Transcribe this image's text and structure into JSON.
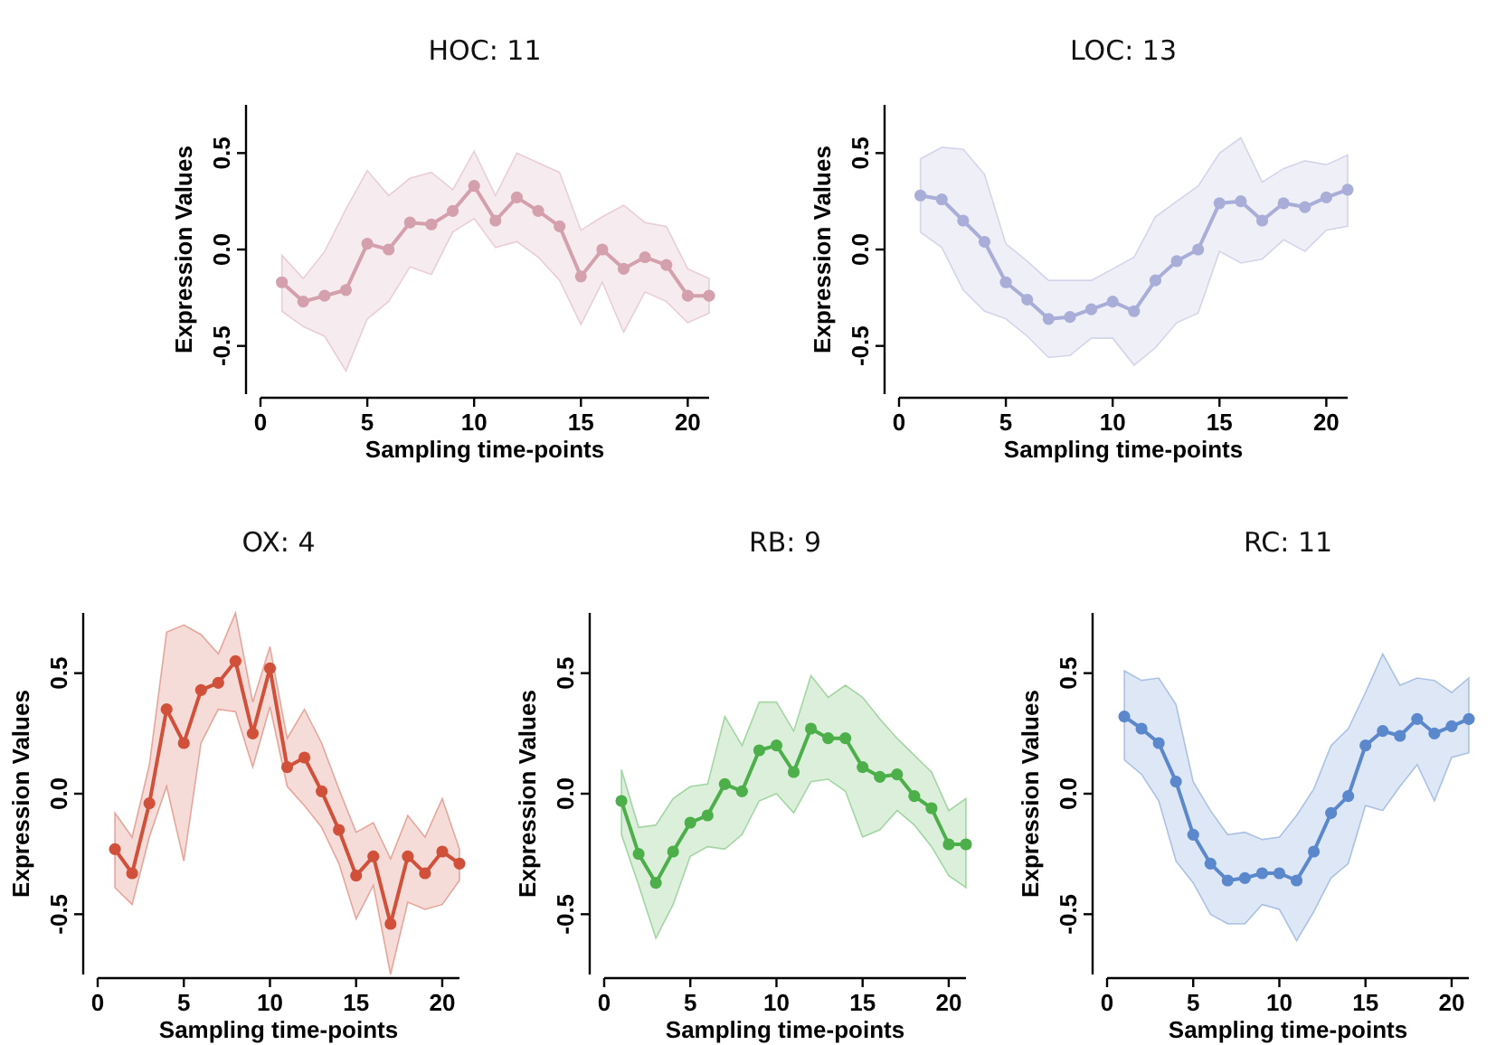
{
  "chart_data": [
    {
      "type": "line",
      "title": "HOC: 11",
      "xlabel": "Sampling time-points",
      "ylabel": "Expression Values",
      "x": [
        1,
        2,
        3,
        4,
        5,
        6,
        7,
        8,
        9,
        10,
        11,
        12,
        13,
        14,
        15,
        16,
        17,
        18,
        19,
        20,
        21
      ],
      "xlim": [
        0,
        21
      ],
      "xticks": [
        0,
        5,
        10,
        15,
        20
      ],
      "ylim": [
        -0.75,
        0.75
      ],
      "yticks": [
        {
          "value": -0.5,
          "label": "-0.5"
        },
        {
          "value": 0,
          "label": "0.0"
        },
        {
          "value": 0.5,
          "label": "0.5"
        }
      ],
      "marker": "circle",
      "series": [
        {
          "color": "#d4a0ae",
          "values": [
            -0.17,
            -0.27,
            -0.24,
            -0.21,
            0.03,
            0.0,
            0.14,
            0.13,
            0.2,
            0.33,
            0.15,
            0.27,
            0.2,
            0.12,
            -0.14,
            0.0,
            -0.1,
            -0.04,
            -0.08,
            -0.24,
            -0.24
          ],
          "lower": [
            -0.32,
            -0.4,
            -0.45,
            -0.63,
            -0.36,
            -0.27,
            -0.09,
            -0.13,
            0.09,
            0.16,
            0.01,
            0.04,
            -0.04,
            -0.16,
            -0.39,
            -0.17,
            -0.43,
            -0.22,
            -0.27,
            -0.38,
            -0.33
          ],
          "upper": [
            -0.03,
            -0.15,
            -0.01,
            0.21,
            0.41,
            0.28,
            0.37,
            0.4,
            0.31,
            0.51,
            0.28,
            0.5,
            0.45,
            0.4,
            0.1,
            0.17,
            0.23,
            0.14,
            0.12,
            -0.1,
            -0.15
          ]
        }
      ]
    },
    {
      "type": "line",
      "title": "LOC: 13",
      "xlabel": "Sampling time-points",
      "ylabel": "Expression Values",
      "x": [
        1,
        2,
        3,
        4,
        5,
        6,
        7,
        8,
        9,
        10,
        11,
        12,
        13,
        14,
        15,
        16,
        17,
        18,
        19,
        20,
        21
      ],
      "xlim": [
        0,
        21
      ],
      "xticks": [
        0,
        5,
        10,
        15,
        20
      ],
      "ylim": [
        -0.75,
        0.75
      ],
      "yticks": [
        {
          "value": -0.5,
          "label": "-0.5"
        },
        {
          "value": 0,
          "label": "0.0"
        },
        {
          "value": 0.5,
          "label": "0.5"
        }
      ],
      "marker": "circle",
      "series": [
        {
          "color": "#a9aed8",
          "values": [
            0.28,
            0.26,
            0.15,
            0.04,
            -0.17,
            -0.26,
            -0.36,
            -0.35,
            -0.31,
            -0.27,
            -0.32,
            -0.16,
            -0.06,
            0.0,
            0.24,
            0.25,
            0.15,
            0.24,
            0.22,
            0.27,
            0.31
          ],
          "lower": [
            0.09,
            0.01,
            -0.21,
            -0.32,
            -0.36,
            -0.45,
            -0.56,
            -0.55,
            -0.46,
            -0.46,
            -0.6,
            -0.51,
            -0.38,
            -0.33,
            -0.01,
            -0.07,
            -0.05,
            0.05,
            -0.01,
            0.1,
            0.12
          ],
          "upper": [
            0.47,
            0.53,
            0.52,
            0.39,
            0.03,
            -0.06,
            -0.16,
            -0.16,
            -0.16,
            -0.1,
            -0.04,
            0.17,
            0.25,
            0.33,
            0.5,
            0.58,
            0.35,
            0.42,
            0.46,
            0.44,
            0.49
          ]
        }
      ]
    },
    {
      "type": "line",
      "title": "OX: 4",
      "xlabel": "Sampling time-points",
      "ylabel": "Expression Values",
      "x": [
        1,
        2,
        3,
        4,
        5,
        6,
        7,
        8,
        9,
        10,
        11,
        12,
        13,
        14,
        15,
        16,
        17,
        18,
        19,
        20,
        21
      ],
      "xlim": [
        0,
        21
      ],
      "xticks": [
        0,
        5,
        10,
        15,
        20
      ],
      "ylim": [
        -0.75,
        0.75
      ],
      "yticks": [
        {
          "value": -0.5,
          "label": "-0.5"
        },
        {
          "value": 0,
          "label": "0.0"
        },
        {
          "value": 0.5,
          "label": "0.5"
        }
      ],
      "marker": "circle",
      "series": [
        {
          "color": "#d0503a",
          "values": [
            -0.23,
            -0.33,
            -0.04,
            0.35,
            0.21,
            0.43,
            0.46,
            0.55,
            0.25,
            0.52,
            0.11,
            0.15,
            0.01,
            -0.15,
            -0.34,
            -0.26,
            -0.54,
            -0.26,
            -0.33,
            -0.24,
            -0.29
          ],
          "lower": [
            -0.39,
            -0.46,
            -0.18,
            0.03,
            -0.28,
            0.21,
            0.35,
            0.34,
            0.11,
            0.36,
            0.03,
            -0.05,
            -0.14,
            -0.29,
            -0.52,
            -0.38,
            -0.75,
            -0.45,
            -0.48,
            -0.46,
            -0.36
          ],
          "upper": [
            -0.08,
            -0.18,
            0.12,
            0.67,
            0.7,
            0.66,
            0.58,
            0.75,
            0.38,
            0.61,
            0.23,
            0.35,
            0.21,
            0.02,
            -0.16,
            -0.12,
            -0.27,
            -0.09,
            -0.18,
            -0.02,
            -0.23
          ]
        }
      ]
    },
    {
      "type": "line",
      "title": "RB: 9",
      "xlabel": "Sampling time-points",
      "ylabel": "Expression Values",
      "x": [
        1,
        2,
        3,
        4,
        5,
        6,
        7,
        8,
        9,
        10,
        11,
        12,
        13,
        14,
        15,
        16,
        17,
        18,
        19,
        20,
        21
      ],
      "xlim": [
        0,
        21
      ],
      "xticks": [
        0,
        5,
        10,
        15,
        20
      ],
      "ylim": [
        -0.75,
        0.75
      ],
      "yticks": [
        {
          "value": -0.5,
          "label": "-0.5"
        },
        {
          "value": 0,
          "label": "0.0"
        },
        {
          "value": 0.5,
          "label": "0.5"
        }
      ],
      "marker": "circle",
      "series": [
        {
          "color": "#4caf4a",
          "values": [
            -0.03,
            -0.25,
            -0.37,
            -0.24,
            -0.12,
            -0.09,
            0.04,
            0.01,
            0.18,
            0.2,
            0.09,
            0.27,
            0.23,
            0.23,
            0.11,
            0.07,
            0.08,
            -0.01,
            -0.06,
            -0.21,
            -0.21
          ],
          "lower": [
            -0.17,
            -0.38,
            -0.6,
            -0.46,
            -0.26,
            -0.22,
            -0.23,
            -0.17,
            -0.03,
            0.0,
            -0.08,
            0.05,
            0.06,
            0.01,
            -0.18,
            -0.15,
            -0.07,
            -0.13,
            -0.22,
            -0.34,
            -0.39
          ],
          "upper": [
            0.1,
            -0.14,
            -0.13,
            -0.02,
            0.03,
            0.04,
            0.32,
            0.2,
            0.38,
            0.38,
            0.26,
            0.49,
            0.4,
            0.45,
            0.4,
            0.31,
            0.23,
            0.16,
            0.09,
            -0.07,
            -0.02
          ]
        }
      ]
    },
    {
      "type": "line",
      "title": "RC: 11",
      "xlabel": "Sampling time-points",
      "ylabel": "Expression Values",
      "x": [
        1,
        2,
        3,
        4,
        5,
        6,
        7,
        8,
        9,
        10,
        11,
        12,
        13,
        14,
        15,
        16,
        17,
        18,
        19,
        20,
        21
      ],
      "xlim": [
        0,
        21
      ],
      "xticks": [
        0,
        5,
        10,
        15,
        20
      ],
      "ylim": [
        -0.75,
        0.75
      ],
      "yticks": [
        {
          "value": -0.5,
          "label": "-0.5"
        },
        {
          "value": 0,
          "label": "0.0"
        },
        {
          "value": 0.5,
          "label": "0.5"
        }
      ],
      "marker": "circle",
      "series": [
        {
          "color": "#5b88cc",
          "values": [
            0.32,
            0.27,
            0.21,
            0.05,
            -0.17,
            -0.29,
            -0.36,
            -0.35,
            -0.33,
            -0.33,
            -0.36,
            -0.24,
            -0.08,
            -0.01,
            0.2,
            0.26,
            0.24,
            0.31,
            0.25,
            0.28,
            0.31
          ],
          "lower": [
            0.14,
            0.08,
            -0.03,
            -0.28,
            -0.37,
            -0.5,
            -0.54,
            -0.54,
            -0.46,
            -0.48,
            -0.61,
            -0.49,
            -0.35,
            -0.29,
            -0.05,
            -0.07,
            0.03,
            0.12,
            -0.03,
            0.15,
            0.17
          ],
          "upper": [
            0.51,
            0.47,
            0.48,
            0.37,
            0.05,
            -0.07,
            -0.17,
            -0.16,
            -0.19,
            -0.18,
            -0.09,
            0.02,
            0.2,
            0.27,
            0.42,
            0.58,
            0.45,
            0.48,
            0.47,
            0.42,
            0.48
          ]
        }
      ]
    }
  ]
}
